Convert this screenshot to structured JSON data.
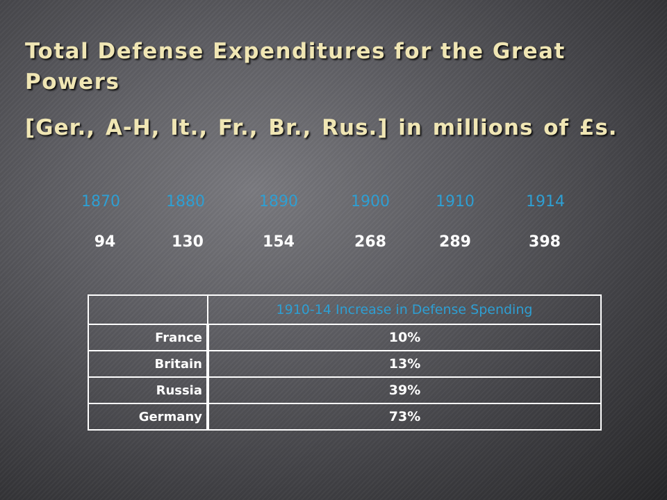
{
  "slide": {
    "title": "Total Defense Expenditures for the Great Powers",
    "subtitle": "[Ger., A-H, It., Fr., Br., Rus.] in millions of £s."
  },
  "expenditures": {
    "years": [
      "1870",
      "1880",
      "1890",
      "1900",
      "1910",
      "1914"
    ],
    "amounts": [
      "94",
      "130",
      "154",
      "268",
      "289",
      "398"
    ]
  },
  "increase_table": {
    "header": "1910-14 Increase in Defense Spending",
    "rows": [
      {
        "country": "France",
        "increase": "10%"
      },
      {
        "country": "Britain",
        "increase": "13%"
      },
      {
        "country": "Russia",
        "increase": "39%"
      },
      {
        "country": "Germany",
        "increase": "73%"
      }
    ]
  },
  "colors": {
    "title": "#f0e6b4",
    "year": "#2e9fd3",
    "value": "#ffffff",
    "table_border": "#ffffff"
  }
}
